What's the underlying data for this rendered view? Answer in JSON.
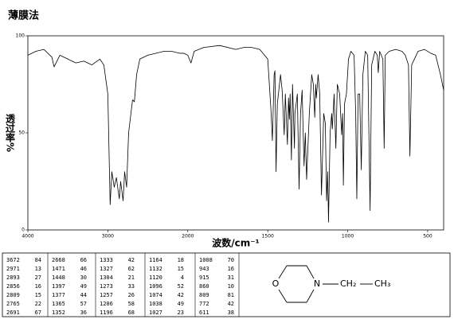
{
  "chart_data": {
    "type": "line",
    "title": "薄膜法",
    "x_label": "波数/cm⁻¹",
    "y_label": "透过率%",
    "xlim": [
      4000,
      400
    ],
    "x_scale_change": 2000,
    "xticks": [
      4000,
      3000,
      2000,
      1500,
      1000,
      500
    ],
    "ylim": [
      0,
      100
    ],
    "yticks": [
      0,
      50,
      100
    ],
    "color": "#000000",
    "x": [
      4000,
      3900,
      3800,
      3700,
      3672,
      3600,
      3500,
      3400,
      3300,
      3200,
      3100,
      3050,
      3000,
      2971,
      2950,
      2920,
      2893,
      2870,
      2856,
      2840,
      2809,
      2790,
      2765,
      2740,
      2691,
      2668,
      2640,
      2600,
      2500,
      2400,
      2300,
      2200,
      2100,
      2050,
      2000,
      1980,
      1960,
      1900,
      1800,
      1700,
      1650,
      1600,
      1550,
      1520,
      1500,
      1480,
      1471,
      1460,
      1455,
      1448,
      1440,
      1420,
      1410,
      1397,
      1390,
      1377,
      1370,
      1365,
      1360,
      1352,
      1345,
      1333,
      1330,
      1327,
      1315,
      1304,
      1295,
      1285,
      1273,
      1265,
      1257,
      1240,
      1225,
      1215,
      1206,
      1200,
      1196,
      1185,
      1175,
      1164,
      1150,
      1140,
      1132,
      1125,
      1120,
      1110,
      1100,
      1096,
      1085,
      1074,
      1065,
      1050,
      1038,
      1032,
      1027,
      1020,
      1008,
      995,
      980,
      960,
      950,
      943,
      935,
      925,
      915,
      905,
      890,
      875,
      860,
      850,
      830,
      815,
      809,
      800,
      780,
      772,
      765,
      740,
      700,
      660,
      640,
      620,
      611,
      600,
      560,
      520,
      480,
      450,
      420,
      400
    ],
    "values": [
      90,
      92,
      93,
      89,
      84,
      90,
      88,
      86,
      87,
      85,
      88,
      85,
      70,
      13,
      30,
      22,
      27,
      20,
      16,
      25,
      15,
      30,
      22,
      50,
      67,
      66,
      80,
      88,
      90,
      91,
      92,
      92,
      91,
      91,
      90,
      86,
      92,
      94,
      95,
      93,
      94,
      94,
      93,
      90,
      88,
      62,
      46,
      80,
      82,
      30,
      65,
      80,
      72,
      49,
      70,
      44,
      68,
      57,
      70,
      36,
      75,
      42,
      60,
      62,
      70,
      21,
      60,
      72,
      33,
      50,
      26,
      60,
      80,
      75,
      58,
      75,
      68,
      80,
      70,
      18,
      60,
      55,
      15,
      30,
      4,
      50,
      60,
      52,
      70,
      42,
      75,
      70,
      49,
      60,
      23,
      65,
      70,
      88,
      92,
      90,
      60,
      16,
      70,
      70,
      31,
      80,
      92,
      90,
      10,
      85,
      92,
      90,
      81,
      92,
      88,
      42,
      90,
      92,
      93,
      92,
      90,
      85,
      38,
      85,
      92,
      93,
      91,
      90,
      80,
      72
    ]
  },
  "peak_table": {
    "columns": [
      [
        [
          3672,
          84
        ],
        [
          2971,
          13
        ],
        [
          2893,
          27
        ],
        [
          2856,
          16
        ],
        [
          2809,
          15
        ],
        [
          2765,
          22
        ],
        [
          2691,
          67
        ]
      ],
      [
        [
          2668,
          66
        ],
        [
          1471,
          46
        ],
        [
          1448,
          30
        ],
        [
          1397,
          49
        ],
        [
          1377,
          44
        ],
        [
          1365,
          57
        ],
        [
          1352,
          36
        ]
      ],
      [
        [
          1333,
          42
        ],
        [
          1327,
          62
        ],
        [
          1304,
          21
        ],
        [
          1273,
          33
        ],
        [
          1257,
          26
        ],
        [
          1206,
          58
        ],
        [
          1196,
          68
        ]
      ],
      [
        [
          1164,
          18
        ],
        [
          1132,
          15
        ],
        [
          1120,
          4
        ],
        [
          1096,
          52
        ],
        [
          1074,
          42
        ],
        [
          1038,
          49
        ],
        [
          1027,
          23
        ]
      ],
      [
        [
          1008,
          70
        ],
        [
          943,
          16
        ],
        [
          915,
          31
        ],
        [
          860,
          10
        ],
        [
          809,
          81
        ],
        [
          772,
          42
        ],
        [
          611,
          38
        ]
      ]
    ]
  },
  "structure": {
    "ring_o": "O",
    "ring_n": "N",
    "group1": "CH₂",
    "group2": "CH₃"
  }
}
